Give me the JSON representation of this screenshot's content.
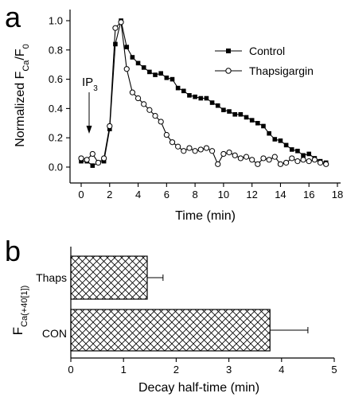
{
  "panel_a": {
    "letter": "a",
    "annotation": "IP",
    "annotation_sub": "3",
    "ylabel_parts": [
      "Normalized F",
      "Ca",
      "/F",
      "0"
    ],
    "legend": [
      "Control",
      "Thapsigargin"
    ]
  },
  "panel_b": {
    "letter": "b",
    "ylabel_main": "F",
    "ylabel_sub": "Ca(+40[1])"
  },
  "chart_data": [
    {
      "type": "line",
      "panel": "a",
      "xlabel": "Time (min)",
      "ylabel": "Normalized F_Ca/F_0",
      "xlim": [
        -1,
        18
      ],
      "ylim": [
        -0.05,
        1.05
      ],
      "xticks": [
        "0",
        "2",
        "4",
        "6",
        "8",
        "10",
        "12",
        "14",
        "16",
        "18"
      ],
      "yticks": [
        "0.0",
        "0.2",
        "0.4",
        "0.6",
        "0.8",
        "1.0"
      ],
      "legend_position": "top-right",
      "annotation": {
        "text": "IP3",
        "x": 0.6
      },
      "grid": false,
      "series": [
        {
          "name": "Control",
          "marker": "filled-square",
          "x": [
            0,
            0.4,
            0.8,
            1.2,
            1.6,
            2.0,
            2.4,
            2.8,
            3.2,
            3.6,
            4.0,
            4.4,
            4.8,
            5.2,
            5.6,
            6.0,
            6.4,
            6.8,
            7.2,
            7.6,
            8.0,
            8.4,
            8.8,
            9.2,
            9.6,
            10.0,
            10.4,
            10.8,
            11.2,
            11.6,
            12.0,
            12.4,
            12.8,
            13.2,
            13.6,
            14.0,
            14.4,
            14.8,
            15.2,
            15.6,
            16.0,
            16.4,
            16.8,
            17.2
          ],
          "y": [
            0.04,
            0.04,
            0.01,
            0.03,
            0.04,
            0.26,
            0.84,
            1.0,
            0.82,
            0.75,
            0.71,
            0.68,
            0.65,
            0.63,
            0.64,
            0.61,
            0.6,
            0.54,
            0.52,
            0.49,
            0.48,
            0.47,
            0.47,
            0.44,
            0.42,
            0.39,
            0.38,
            0.36,
            0.36,
            0.34,
            0.32,
            0.3,
            0.28,
            0.23,
            0.19,
            0.18,
            0.15,
            0.12,
            0.11,
            0.08,
            0.09,
            0.06,
            0.04,
            0.03
          ]
        },
        {
          "name": "Thapsigargin",
          "marker": "open-circle",
          "x": [
            0,
            0.4,
            0.8,
            1.2,
            1.6,
            2.0,
            2.4,
            2.8,
            3.2,
            3.6,
            4.0,
            4.4,
            4.8,
            5.2,
            5.6,
            6.0,
            6.4,
            6.8,
            7.2,
            7.6,
            8.0,
            8.4,
            8.8,
            9.2,
            9.6,
            10.0,
            10.4,
            10.8,
            11.2,
            11.6,
            12.0,
            12.4,
            12.8,
            13.2,
            13.6,
            14.0,
            14.4,
            14.8,
            15.2,
            15.6,
            16.0,
            16.4,
            16.8,
            17.2
          ],
          "y": [
            0.06,
            0.05,
            0.09,
            0.03,
            0.06,
            0.28,
            0.95,
            0.99,
            0.67,
            0.51,
            0.47,
            0.43,
            0.39,
            0.35,
            0.31,
            0.22,
            0.17,
            0.14,
            0.11,
            0.13,
            0.11,
            0.12,
            0.13,
            0.11,
            0.02,
            0.09,
            0.1,
            0.08,
            0.06,
            0.07,
            0.05,
            0.02,
            0.06,
            0.05,
            0.07,
            0.02,
            0.03,
            0.06,
            0.04,
            0.05,
            0.04,
            0.05,
            0.03,
            0.02
          ]
        }
      ]
    },
    {
      "type": "bar",
      "panel": "b",
      "orientation": "horizontal",
      "xlabel": "Decay half-time (min)",
      "xlim": [
        0,
        5
      ],
      "xticks": [
        "0",
        "1",
        "2",
        "3",
        "4",
        "5"
      ],
      "categories": [
        "Thaps",
        "CON"
      ],
      "values": [
        1.45,
        3.78
      ],
      "errors": [
        0.3,
        0.72
      ],
      "fill": "crosshatch"
    }
  ]
}
